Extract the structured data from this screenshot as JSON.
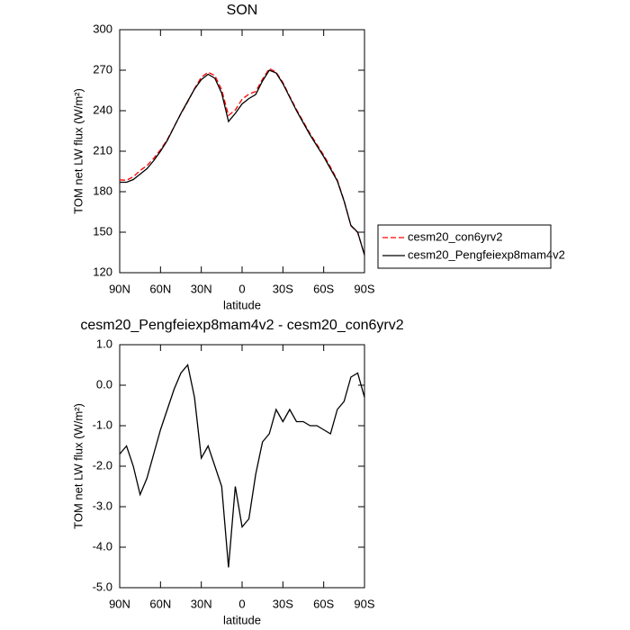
{
  "chart_data": [
    {
      "type": "line",
      "title": "SON",
      "xlabel": "latitude",
      "ylabel": "TOM net LW flux (W/m²)",
      "x": [
        90,
        85,
        80,
        75,
        70,
        65,
        60,
        55,
        50,
        45,
        40,
        35,
        30,
        25,
        20,
        15,
        10,
        5,
        0,
        -5,
        -10,
        -15,
        -20,
        -25,
        -30,
        -35,
        -40,
        -45,
        -50,
        -55,
        -60,
        -65,
        -70,
        -75,
        -80,
        -85,
        -90
      ],
      "series": [
        {
          "name": "cesm20_con6yrv2",
          "color": "#ff0000",
          "dash": true,
          "values": [
            188.7,
            188.5,
            191,
            195.7,
            199.3,
            204.7,
            211.1,
            218.6,
            228.1,
            237.7,
            246.5,
            256.3,
            264.8,
            268.5,
            266,
            255.5,
            236.5,
            240.5,
            248.5,
            252.3,
            254.2,
            263.4,
            271.2,
            268.6,
            260.9,
            250.6,
            240.9,
            231.9,
            223,
            215,
            207.1,
            198.2,
            188.6,
            173.4,
            154.8,
            149.7,
            133.3
          ]
        },
        {
          "name": "cesm20_Pengfeiexp8mam4v2",
          "color": "#000000",
          "dash": false,
          "values": [
            187,
            187,
            189,
            193,
            197,
            203,
            210,
            218,
            228,
            238,
            247,
            256,
            263,
            267,
            264,
            253,
            232,
            238,
            245,
            249,
            252,
            262,
            270,
            268,
            260,
            250,
            240,
            231,
            222,
            214,
            206,
            197,
            188,
            173,
            155,
            150,
            133
          ]
        }
      ],
      "xlim": [
        90,
        -90
      ],
      "xticks": [
        {
          "value": 90,
          "label": "90N"
        },
        {
          "value": 60,
          "label": "60N"
        },
        {
          "value": 30,
          "label": "30N"
        },
        0,
        {
          "value": -30,
          "label": "30S"
        },
        {
          "value": -60,
          "label": "60S"
        },
        {
          "value": -90,
          "label": "90S"
        }
      ],
      "ylim": [
        120,
        300
      ],
      "yticks": [
        120,
        150,
        180,
        210,
        240,
        270,
        300
      ],
      "legend": "right"
    },
    {
      "type": "line",
      "title": "cesm20_Pengfeiexp8mam4v2 - cesm20_con6yrv2",
      "xlabel": "latitude",
      "ylabel": "TOM net LW flux (W/m²)",
      "x": [
        90,
        85,
        80,
        75,
        70,
        65,
        60,
        55,
        50,
        45,
        40,
        35,
        30,
        25,
        20,
        15,
        10,
        5,
        0,
        -5,
        -10,
        -15,
        -20,
        -25,
        -30,
        -35,
        -40,
        -45,
        -50,
        -55,
        -60,
        -65,
        -70,
        -75,
        -80,
        -85,
        -90
      ],
      "series": [
        {
          "color": "#000000",
          "dash": false,
          "values": [
            -1.7,
            -1.5,
            -2.0,
            -2.7,
            -2.3,
            -1.7,
            -1.1,
            -0.6,
            -0.1,
            0.3,
            0.5,
            -0.3,
            -1.8,
            -1.5,
            -2.0,
            -2.5,
            -4.5,
            -2.5,
            -3.5,
            -3.3,
            -2.2,
            -1.4,
            -1.2,
            -0.6,
            -0.9,
            -0.6,
            -0.9,
            -0.9,
            -1.0,
            -1.0,
            -1.1,
            -1.2,
            -0.6,
            -0.4,
            0.2,
            0.3,
            -0.3
          ]
        }
      ],
      "xlim": [
        90,
        -90
      ],
      "xticks": [
        {
          "value": 90,
          "label": "90N"
        },
        {
          "value": 60,
          "label": "60N"
        },
        {
          "value": 30,
          "label": "30N"
        },
        0,
        {
          "value": -30,
          "label": "30S"
        },
        {
          "value": -60,
          "label": "60S"
        },
        {
          "value": -90,
          "label": "90S"
        }
      ],
      "ylim": [
        -5,
        1
      ],
      "yticks": [
        {
          "value": -5,
          "label": "-5.0"
        },
        {
          "value": -4,
          "label": "-4.0"
        },
        {
          "value": -3,
          "label": "-3.0"
        },
        {
          "value": -2,
          "label": "-2.0"
        },
        {
          "value": -1,
          "label": "-1.0"
        },
        {
          "value": 0,
          "label": "0.0"
        },
        {
          "value": 1,
          "label": "1.0"
        }
      ]
    }
  ]
}
